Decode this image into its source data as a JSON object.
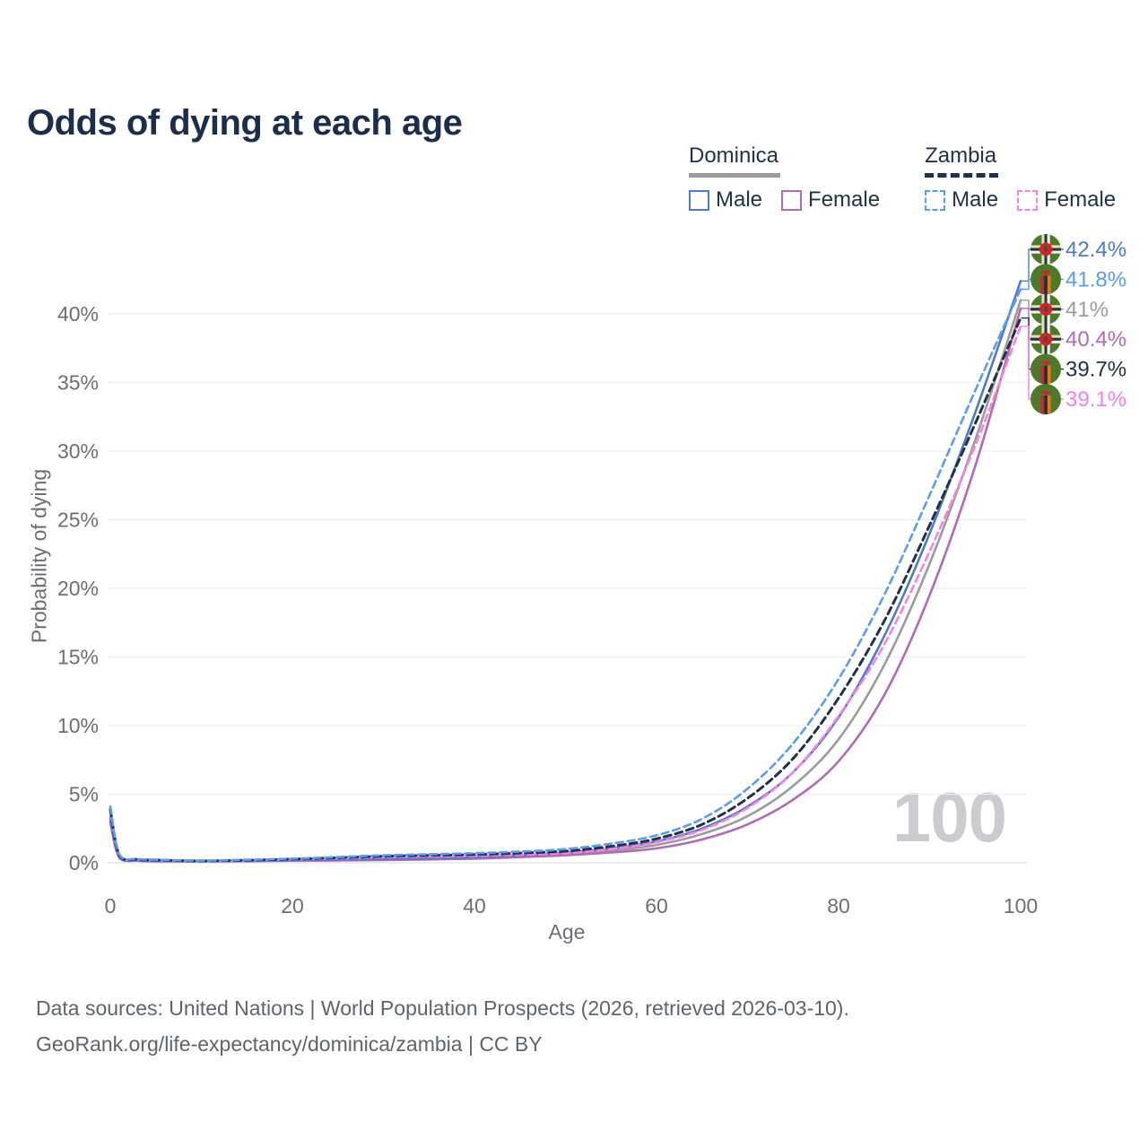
{
  "page": {
    "title": "Odds of dying at each age",
    "watermark": "100",
    "footer_line1": "Data sources: United Nations | World Population Prospects (2026, retrieved 2026-03-10).",
    "footer_line2": "GeoRank.org/life-expectancy/dominica/zambia | CC BY"
  },
  "legend": {
    "groups": [
      {
        "label": "Dominica",
        "line_style": "solid",
        "underline_color": "#9b9b9b",
        "items": [
          {
            "label": "Male",
            "color": "#4e7ac7",
            "dashed": false
          },
          {
            "label": "Female",
            "color": "#b06cb3",
            "dashed": false
          }
        ]
      },
      {
        "label": "Zambia",
        "line_style": "dashed",
        "underline_color": "#22304a",
        "items": [
          {
            "label": "Male",
            "color": "#5b9bf2",
            "dashed": true
          },
          {
            "label": "Female",
            "color": "#fb80e2",
            "dashed": true
          }
        ]
      }
    ]
  },
  "chart_data": {
    "type": "line",
    "title": "Odds of dying at each age",
    "xlabel": "Age",
    "ylabel": "Probability of dying",
    "xlim": [
      0,
      100
    ],
    "ylim": [
      0,
      45
    ],
    "grid": "horizontal",
    "legend_position": "top-right",
    "x_ticks": [
      0,
      20,
      40,
      60,
      80,
      100
    ],
    "y_ticks": [
      {
        "value": 0,
        "label": "0%"
      },
      {
        "value": 5,
        "label": "5%"
      },
      {
        "value": 10,
        "label": "10%"
      },
      {
        "value": 15,
        "label": "15%"
      },
      {
        "value": 20,
        "label": "20%"
      },
      {
        "value": 25,
        "label": "25%"
      },
      {
        "value": 30,
        "label": "30%"
      },
      {
        "value": 35,
        "label": "35%"
      },
      {
        "value": 40,
        "label": "40%"
      }
    ],
    "x": [
      0,
      1,
      3,
      5,
      10,
      15,
      20,
      25,
      30,
      35,
      40,
      45,
      50,
      55,
      60,
      65,
      70,
      75,
      80,
      85,
      90,
      95,
      100
    ],
    "series": [
      {
        "id": "dominica-male",
        "name": "Dominica Male",
        "country": "Dominica",
        "sex": "Male",
        "color": "#4e7ac7",
        "dashed": false,
        "flag": "dominica",
        "end_label": "42.4%",
        "values": [
          3.3,
          0.4,
          0.18,
          0.13,
          0.12,
          0.15,
          0.2,
          0.24,
          0.28,
          0.33,
          0.4,
          0.55,
          0.75,
          1.05,
          1.55,
          2.5,
          4.1,
          6.6,
          10.6,
          16.5,
          24.0,
          32.8,
          42.4
        ]
      },
      {
        "id": "zambia-male",
        "name": "Zambia Male",
        "country": "Zambia",
        "sex": "Male",
        "color": "#5b9bf2",
        "dashed": true,
        "flag": "zambia",
        "end_label": "41.8%",
        "values": [
          4.1,
          0.6,
          0.28,
          0.22,
          0.16,
          0.22,
          0.3,
          0.42,
          0.55,
          0.62,
          0.7,
          0.82,
          1.0,
          1.4,
          2.0,
          3.2,
          5.4,
          8.7,
          13.4,
          19.5,
          26.8,
          34.4,
          41.8
        ]
      },
      {
        "id": "dominica-overall",
        "name": "Dominica Both sexes",
        "country": "Dominica",
        "sex": "Both",
        "color": "#9b9b9b",
        "dashed": false,
        "flag": "dominica",
        "end_label": "41%",
        "values": [
          3.1,
          0.38,
          0.17,
          0.12,
          0.11,
          0.14,
          0.18,
          0.21,
          0.25,
          0.3,
          0.36,
          0.49,
          0.65,
          0.9,
          1.3,
          2.1,
          3.4,
          5.6,
          9.0,
          14.4,
          21.8,
          30.8,
          41.0
        ]
      },
      {
        "id": "dominica-female",
        "name": "Dominica Female",
        "country": "Dominica",
        "sex": "Female",
        "color": "#b06cb3",
        "dashed": false,
        "flag": "dominica",
        "end_label": "40.4%",
        "values": [
          2.9,
          0.35,
          0.15,
          0.11,
          0.1,
          0.12,
          0.15,
          0.17,
          0.2,
          0.24,
          0.3,
          0.41,
          0.55,
          0.75,
          1.05,
          1.7,
          2.8,
          4.6,
          7.4,
          12.2,
          19.5,
          28.9,
          40.4
        ]
      },
      {
        "id": "zambia-overall",
        "name": "Zambia Both sexes",
        "country": "Zambia",
        "sex": "Both",
        "color": "#22304a",
        "dashed": true,
        "flag": "zambia",
        "end_label": "39.7%",
        "values": [
          3.9,
          0.55,
          0.25,
          0.2,
          0.14,
          0.19,
          0.27,
          0.37,
          0.48,
          0.54,
          0.6,
          0.71,
          0.85,
          1.2,
          1.75,
          2.8,
          4.7,
          7.6,
          12.0,
          17.6,
          24.6,
          32.0,
          39.7
        ]
      },
      {
        "id": "zambia-female",
        "name": "Zambia Female",
        "country": "Zambia",
        "sex": "Female",
        "color": "#fb80e2",
        "dashed": true,
        "flag": "zambia",
        "end_label": "39.1%",
        "values": [
          3.7,
          0.5,
          0.23,
          0.18,
          0.13,
          0.17,
          0.24,
          0.32,
          0.4,
          0.45,
          0.5,
          0.59,
          0.7,
          1.0,
          1.5,
          2.4,
          4.0,
          6.6,
          10.7,
          15.9,
          22.7,
          30.4,
          39.1
        ]
      }
    ],
    "draw_order": [
      "dominica-overall",
      "dominica-female",
      "dominica-male",
      "zambia-female",
      "zambia-overall",
      "zambia-male"
    ]
  }
}
